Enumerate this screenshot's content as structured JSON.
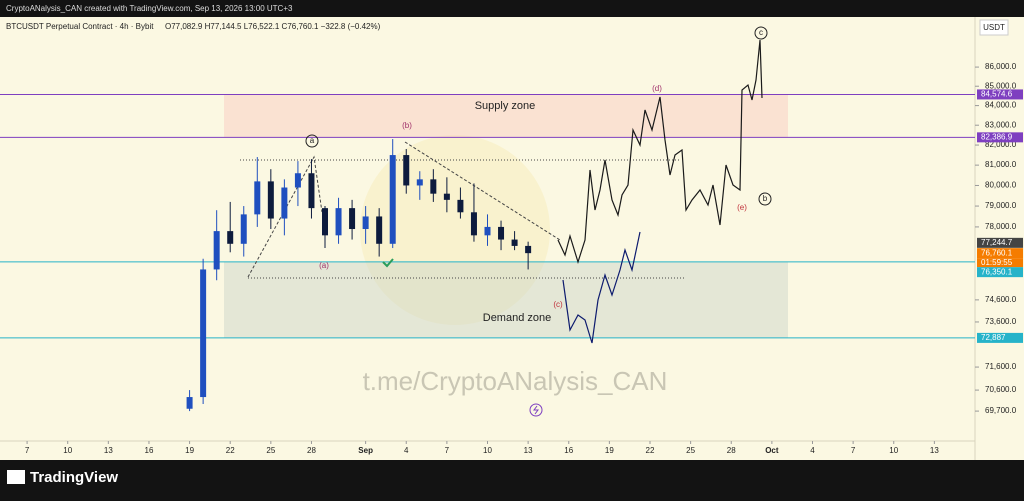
{
  "header": {
    "credit": "CryptoANalysis_CAN created with TradingView.com, Sep 13, 2026 13:00 UTC+3",
    "symbol": "BTCUSDT Perpetual Contract · 4h · Bybit",
    "ohlc": "O77,082.9 H77,144.5 L76,522.1 C76,760.1 −322.8 (−0.42%)"
  },
  "chart_data": {
    "type": "candlestick",
    "log": true,
    "currency": "USDT",
    "ylim": [
      68480,
      88780
    ],
    "yticks": [
      {
        "value": 86000,
        "label": "86,000.0"
      },
      {
        "value": 85000,
        "label": "85,000.0"
      },
      {
        "value": 84000,
        "label": "84,000.0"
      },
      {
        "value": 83000,
        "label": "83,000.0"
      },
      {
        "value": 82000,
        "label": "82,000.0"
      },
      {
        "value": 81000,
        "label": "81,000.0"
      },
      {
        "value": 80000,
        "label": "80,000.0"
      },
      {
        "value": 79000,
        "label": "79,000.0"
      },
      {
        "value": 78000,
        "label": "78,000.0"
      },
      {
        "value": 74600,
        "label": "74,600.0"
      },
      {
        "value": 73600,
        "label": "73,600.0"
      },
      {
        "value": 71600,
        "label": "71,600.0"
      },
      {
        "value": 70600,
        "label": "70,600.0"
      },
      {
        "value": 69700,
        "label": "69,700.0"
      }
    ],
    "xlim": [
      "Aug 5",
      "Oct 16"
    ],
    "xticks": [
      {
        "value": "Aug 7",
        "label": "7"
      },
      {
        "value": "Aug 10",
        "label": "10"
      },
      {
        "value": "Aug 13",
        "label": "13"
      },
      {
        "value": "Aug 16",
        "label": "16"
      },
      {
        "value": "Aug 19",
        "label": "19"
      },
      {
        "value": "Aug 22",
        "label": "22"
      },
      {
        "value": "Aug 25",
        "label": "25"
      },
      {
        "value": "Aug 28",
        "label": "28"
      },
      {
        "value": "Sep 1",
        "label": "Sep"
      },
      {
        "value": "Sep 4",
        "label": "4"
      },
      {
        "value": "Sep 7",
        "label": "7"
      },
      {
        "value": "Sep 10",
        "label": "10"
      },
      {
        "value": "Sep 13",
        "label": "13"
      },
      {
        "value": "Sep 16",
        "label": "16"
      },
      {
        "value": "Sep 19",
        "label": "19"
      },
      {
        "value": "Sep 22",
        "label": "22"
      },
      {
        "value": "Sep 25",
        "label": "25"
      },
      {
        "value": "Sep 28",
        "label": "28"
      },
      {
        "value": "Oct 1",
        "label": "Oct"
      },
      {
        "value": "Oct 4",
        "label": "4"
      },
      {
        "value": "Oct 7",
        "label": "7"
      },
      {
        "value": "Oct 10",
        "label": "10"
      },
      {
        "value": "Oct 13",
        "label": "13"
      }
    ],
    "up_color": "#1f4fbf",
    "down_color": "#0d1b3d",
    "candles": {
      "x": [
        "Aug 19",
        "Aug 20",
        "Aug 21",
        "Aug 22",
        "Aug 23",
        "Aug 24",
        "Aug 25",
        "Aug 26",
        "Aug 27",
        "Aug 28",
        "Aug 29",
        "Aug 30",
        "Aug 31",
        "Sep 1",
        "Sep 2",
        "Sep 3",
        "Sep 4",
        "Sep 5",
        "Sep 6",
        "Sep 7",
        "Sep 8",
        "Sep 9",
        "Sep 10",
        "Sep 11",
        "Sep 12",
        "Sep 13"
      ],
      "open": [
        69800,
        70300,
        76000,
        77800,
        77200,
        78600,
        80200,
        78400,
        79900,
        80600,
        78900,
        77600,
        78900,
        77900,
        78500,
        77200,
        81500,
        80000,
        80300,
        79600,
        79300,
        78700,
        77600,
        78000,
        77400,
        77100
      ],
      "high": [
        70600,
        76500,
        78800,
        79200,
        79000,
        81400,
        80800,
        80300,
        81200,
        81300,
        79000,
        79400,
        79300,
        79000,
        78900,
        82300,
        81800,
        80700,
        80800,
        80400,
        79900,
        80100,
        78600,
        78300,
        77800,
        77300
      ],
      "low": [
        69700,
        70000,
        75500,
        76800,
        76600,
        78000,
        77900,
        77600,
        79000,
        78400,
        77000,
        77200,
        77400,
        77200,
        76600,
        77000,
        79600,
        79300,
        79200,
        78700,
        78400,
        77300,
        77100,
        76900,
        76900,
        76000
      ],
      "close": [
        70300,
        76000,
        77800,
        77200,
        78600,
        80200,
        78400,
        79900,
        80600,
        78900,
        77600,
        78900,
        77900,
        78500,
        77200,
        81500,
        80000,
        80300,
        79600,
        79300,
        78700,
        77600,
        78000,
        77400,
        77100,
        76760.1
      ]
    },
    "price_tags": [
      {
        "value": 84574.6,
        "label": "84,574.6",
        "color": "#7e3fc0"
      },
      {
        "value": 82386.9,
        "label": "82,386.9",
        "color": "#7e3fc0"
      },
      {
        "value": 77244.7,
        "label": "77,244.7",
        "color": "#444444"
      },
      {
        "value": 76760.1,
        "label": "76,760.1",
        "color": "#f57c00"
      },
      {
        "value": 76350.1,
        "label": "76,350.1",
        "color": "#26b3c9"
      },
      {
        "value": 72887,
        "label": "72,887",
        "color": "#26b3c9"
      }
    ],
    "countdown": "01:59:55",
    "zones": {
      "supply": "Supply zone",
      "demand": "Demand zone"
    },
    "annotations": {
      "a_circle": "a",
      "b_paren": "(b)",
      "a_paren": "(a)",
      "c_paren": "(c)",
      "d_paren": "(d)",
      "c_circle": "c",
      "b_circle": "b",
      "e_paren": "(e)"
    },
    "watermark": "t.me/CryptoANalysis_CAN"
  },
  "footer": {
    "brand": "TradingView"
  }
}
